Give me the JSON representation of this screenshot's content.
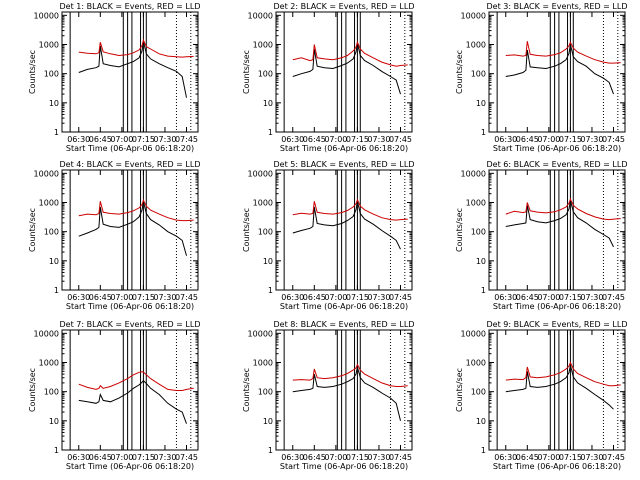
{
  "figure": {
    "ylabel": "Counts/sec",
    "xlabel": "Start Time (06-Apr-06 06:18:20)",
    "x_ticks": [
      "06:30",
      "06:45",
      "07:00",
      "07:15",
      "07:30",
      "07:45"
    ],
    "y_ticks": [
      "1",
      "10",
      "100",
      "1000",
      "10000"
    ],
    "legend_text": "BLACK = Events, RED = LLD",
    "colors": {
      "events": "#000000",
      "lld": "#cc0000",
      "axes": "#000000"
    }
  },
  "chart_data": [
    {
      "type": "line",
      "title": "Det 1",
      "xlim": [
        "06:18:20",
        "07:53"
      ],
      "ylim": [
        1,
        13000
      ],
      "ylog": true,
      "series": [
        {
          "name": "Events",
          "x": [
            "06:30",
            "06:36",
            "06:42",
            "06:44",
            "06:45",
            "06:47",
            "06:52",
            "06:58",
            "07:04",
            "07:08",
            "07:12",
            "07:14",
            "07:15",
            "07:17",
            "07:20",
            "07:26",
            "07:32",
            "07:38",
            "07:42",
            "07:45"
          ],
          "values": [
            110,
            140,
            160,
            180,
            900,
            220,
            190,
            170,
            220,
            260,
            350,
            600,
            1300,
            480,
            320,
            220,
            160,
            120,
            80,
            15
          ]
        },
        {
          "name": "LLD",
          "x": [
            "06:30",
            "06:36",
            "06:42",
            "06:44",
            "06:45",
            "06:47",
            "06:52",
            "06:58",
            "07:04",
            "07:08",
            "07:12",
            "07:14",
            "07:15",
            "07:17",
            "07:20",
            "07:26",
            "07:32",
            "07:38",
            "07:42",
            "07:45",
            "07:50"
          ],
          "values": [
            550,
            500,
            480,
            520,
            1200,
            560,
            480,
            420,
            450,
            520,
            650,
            900,
            1400,
            850,
            700,
            480,
            400,
            380,
            370,
            380,
            390
          ]
        }
      ]
    },
    {
      "type": "line",
      "title": "Det 2",
      "xlim": [
        "06:18:20",
        "07:53"
      ],
      "ylim": [
        1,
        13000
      ],
      "ylog": true,
      "series": [
        {
          "name": "Events",
          "x": [
            "06:30",
            "06:36",
            "06:42",
            "06:44",
            "06:45",
            "06:47",
            "06:52",
            "06:58",
            "07:04",
            "07:08",
            "07:12",
            "07:14",
            "07:15",
            "07:17",
            "07:20",
            "07:26",
            "07:32",
            "07:38",
            "07:42",
            "07:45"
          ],
          "values": [
            80,
            100,
            120,
            140,
            700,
            180,
            160,
            150,
            190,
            230,
            320,
            550,
            1100,
            420,
            280,
            190,
            120,
            80,
            60,
            20
          ]
        },
        {
          "name": "LLD",
          "x": [
            "06:30",
            "06:36",
            "06:42",
            "06:44",
            "06:45",
            "06:47",
            "06:52",
            "06:58",
            "07:04",
            "07:08",
            "07:12",
            "07:14",
            "07:15",
            "07:17",
            "07:20",
            "07:26",
            "07:32",
            "07:38",
            "07:42",
            "07:45",
            "07:50"
          ],
          "values": [
            300,
            350,
            280,
            300,
            1000,
            350,
            320,
            300,
            350,
            420,
            600,
            800,
            1200,
            700,
            500,
            350,
            250,
            200,
            180,
            190,
            200
          ]
        }
      ]
    },
    {
      "type": "line",
      "title": "Det 3",
      "xlim": [
        "06:18:20",
        "07:53"
      ],
      "ylim": [
        1,
        13000
      ],
      "ylog": true,
      "series": [
        {
          "name": "Events",
          "x": [
            "06:30",
            "06:36",
            "06:42",
            "06:44",
            "06:45",
            "06:47",
            "06:52",
            "06:58",
            "07:04",
            "07:08",
            "07:12",
            "07:14",
            "07:15",
            "07:17",
            "07:20",
            "07:26",
            "07:32",
            "07:38",
            "07:42",
            "07:45"
          ],
          "values": [
            80,
            90,
            110,
            130,
            650,
            170,
            160,
            150,
            180,
            220,
            300,
            500,
            1000,
            380,
            260,
            180,
            100,
            70,
            50,
            20
          ]
        },
        {
          "name": "LLD",
          "x": [
            "06:30",
            "06:36",
            "06:42",
            "06:44",
            "06:45",
            "06:47",
            "06:52",
            "06:58",
            "07:04",
            "07:08",
            "07:12",
            "07:14",
            "07:15",
            "07:17",
            "07:20",
            "07:26",
            "07:32",
            "07:38",
            "07:42",
            "07:45",
            "07:50"
          ],
          "values": [
            420,
            440,
            400,
            420,
            1300,
            460,
            420,
            400,
            450,
            520,
            700,
            900,
            1200,
            750,
            550,
            400,
            300,
            250,
            230,
            230,
            240
          ]
        }
      ]
    },
    {
      "type": "line",
      "title": "Det 4",
      "xlim": [
        "06:18:20",
        "07:53"
      ],
      "ylim": [
        1,
        13000
      ],
      "ylog": true,
      "series": [
        {
          "name": "Events",
          "x": [
            "06:30",
            "06:36",
            "06:42",
            "06:44",
            "06:45",
            "06:47",
            "06:52",
            "06:58",
            "07:04",
            "07:08",
            "07:12",
            "07:14",
            "07:15",
            "07:17",
            "07:20",
            "07:26",
            "07:32",
            "07:38",
            "07:42",
            "07:45"
          ],
          "values": [
            70,
            90,
            120,
            140,
            700,
            180,
            150,
            140,
            180,
            220,
            320,
            550,
            1100,
            420,
            260,
            170,
            100,
            70,
            50,
            15
          ]
        },
        {
          "name": "LLD",
          "x": [
            "06:30",
            "06:36",
            "06:42",
            "06:44",
            "06:45",
            "06:47",
            "06:52",
            "06:58",
            "07:04",
            "07:08",
            "07:12",
            "07:14",
            "07:15",
            "07:17",
            "07:20",
            "07:26",
            "07:32",
            "07:38",
            "07:42",
            "07:45",
            "07:50"
          ],
          "values": [
            350,
            400,
            380,
            420,
            1100,
            460,
            420,
            400,
            450,
            520,
            650,
            850,
            1200,
            750,
            550,
            400,
            300,
            250,
            240,
            240,
            250
          ]
        }
      ]
    },
    {
      "type": "line",
      "title": "Det 5",
      "xlim": [
        "06:18:20",
        "07:53"
      ],
      "ylim": [
        1,
        13000
      ],
      "ylog": true,
      "series": [
        {
          "name": "Events",
          "x": [
            "06:30",
            "06:36",
            "06:42",
            "06:44",
            "06:45",
            "06:47",
            "06:52",
            "06:58",
            "07:04",
            "07:08",
            "07:12",
            "07:14",
            "07:15",
            "07:17",
            "07:20",
            "07:26",
            "07:32",
            "07:38",
            "07:42",
            "07:45"
          ],
          "values": [
            90,
            110,
            130,
            150,
            700,
            190,
            170,
            160,
            190,
            240,
            330,
            560,
            1100,
            420,
            270,
            180,
            110,
            70,
            50,
            25
          ]
        },
        {
          "name": "LLD",
          "x": [
            "06:30",
            "06:36",
            "06:42",
            "06:44",
            "06:45",
            "06:47",
            "06:52",
            "06:58",
            "07:04",
            "07:08",
            "07:12",
            "07:14",
            "07:15",
            "07:17",
            "07:20",
            "07:26",
            "07:32",
            "07:38",
            "07:42",
            "07:45",
            "07:50"
          ],
          "values": [
            380,
            430,
            400,
            420,
            1100,
            460,
            420,
            400,
            450,
            530,
            700,
            900,
            1250,
            750,
            560,
            400,
            300,
            260,
            250,
            260,
            270
          ]
        }
      ]
    },
    {
      "type": "line",
      "title": "Det 6",
      "xlim": [
        "06:18:20",
        "07:53"
      ],
      "ylim": [
        1,
        13000
      ],
      "ylog": true,
      "series": [
        {
          "name": "Events",
          "x": [
            "06:30",
            "06:36",
            "06:42",
            "06:44",
            "06:45",
            "06:47",
            "06:52",
            "06:58",
            "07:04",
            "07:08",
            "07:12",
            "07:14",
            "07:15",
            "07:17",
            "07:20",
            "07:26",
            "07:32",
            "07:38",
            "07:42",
            "07:45"
          ],
          "values": [
            150,
            170,
            190,
            200,
            800,
            260,
            220,
            200,
            240,
            280,
            380,
            600,
            1200,
            480,
            300,
            200,
            120,
            80,
            60,
            30
          ]
        },
        {
          "name": "LLD",
          "x": [
            "06:30",
            "06:36",
            "06:42",
            "06:44",
            "06:45",
            "06:47",
            "06:52",
            "06:58",
            "07:04",
            "07:08",
            "07:12",
            "07:14",
            "07:15",
            "07:17",
            "07:20",
            "07:26",
            "07:32",
            "07:38",
            "07:42",
            "07:45",
            "07:50"
          ],
          "values": [
            400,
            500,
            450,
            480,
            1000,
            520,
            470,
            440,
            480,
            560,
            700,
            950,
            1300,
            800,
            600,
            420,
            320,
            270,
            260,
            270,
            280
          ]
        }
      ]
    },
    {
      "type": "line",
      "title": "Det 7",
      "xlim": [
        "06:18:20",
        "07:53"
      ],
      "ylim": [
        1,
        13000
      ],
      "ylog": true,
      "series": [
        {
          "name": "Events",
          "x": [
            "06:30",
            "06:36",
            "06:42",
            "06:44",
            "06:45",
            "06:47",
            "06:52",
            "06:58",
            "07:04",
            "07:08",
            "07:12",
            "07:14",
            "07:15",
            "07:17",
            "07:20",
            "07:26",
            "07:32",
            "07:38",
            "07:42",
            "07:45"
          ],
          "values": [
            50,
            45,
            40,
            45,
            80,
            50,
            45,
            60,
            90,
            130,
            170,
            210,
            240,
            190,
            130,
            80,
            40,
            25,
            20,
            8
          ]
        },
        {
          "name": "LLD",
          "x": [
            "06:30",
            "06:36",
            "06:42",
            "06:44",
            "06:45",
            "06:47",
            "06:52",
            "06:58",
            "07:04",
            "07:08",
            "07:12",
            "07:14",
            "07:15",
            "07:17",
            "07:20",
            "07:26",
            "07:32",
            "07:38",
            "07:42",
            "07:45",
            "07:50"
          ],
          "values": [
            180,
            140,
            120,
            130,
            160,
            130,
            150,
            200,
            280,
            380,
            460,
            480,
            470,
            380,
            280,
            180,
            120,
            110,
            110,
            120,
            130
          ]
        }
      ]
    },
    {
      "type": "line",
      "title": "Det 8",
      "xlim": [
        "06:18:20",
        "07:53"
      ],
      "ylim": [
        1,
        13000
      ],
      "ylog": true,
      "series": [
        {
          "name": "Events",
          "x": [
            "06:30",
            "06:36",
            "06:42",
            "06:44",
            "06:45",
            "06:47",
            "06:52",
            "06:58",
            "07:04",
            "07:08",
            "07:12",
            "07:14",
            "07:15",
            "07:17",
            "07:20",
            "07:26",
            "07:32",
            "07:38",
            "07:42",
            "07:45"
          ],
          "values": [
            100,
            110,
            120,
            130,
            400,
            150,
            140,
            150,
            180,
            220,
            280,
            400,
            700,
            300,
            200,
            140,
            90,
            60,
            40,
            10
          ]
        },
        {
          "name": "LLD",
          "x": [
            "06:30",
            "06:36",
            "06:42",
            "06:44",
            "06:45",
            "06:47",
            "06:52",
            "06:58",
            "07:04",
            "07:08",
            "07:12",
            "07:14",
            "07:15",
            "07:17",
            "07:20",
            "07:26",
            "07:32",
            "07:38",
            "07:42",
            "07:45",
            "07:50"
          ],
          "values": [
            250,
            260,
            250,
            280,
            600,
            300,
            280,
            300,
            350,
            420,
            550,
            650,
            850,
            550,
            400,
            280,
            200,
            160,
            150,
            150,
            160
          ]
        }
      ]
    },
    {
      "type": "line",
      "title": "Det 9",
      "xlim": [
        "06:18:20",
        "07:53"
      ],
      "ylim": [
        1,
        13000
      ],
      "ylog": true,
      "series": [
        {
          "name": "Events",
          "x": [
            "06:30",
            "06:36",
            "06:42",
            "06:44",
            "06:45",
            "06:47",
            "06:52",
            "06:58",
            "07:04",
            "07:08",
            "07:12",
            "07:14",
            "07:15",
            "07:17",
            "07:20",
            "07:26",
            "07:32",
            "07:38",
            "07:42",
            "07:45"
          ],
          "values": [
            100,
            110,
            120,
            130,
            500,
            150,
            140,
            150,
            180,
            220,
            300,
            450,
            800,
            320,
            200,
            130,
            80,
            50,
            35,
            25
          ]
        },
        {
          "name": "LLD",
          "x": [
            "06:30",
            "06:36",
            "06:42",
            "06:44",
            "06:45",
            "06:47",
            "06:52",
            "06:58",
            "07:04",
            "07:08",
            "07:12",
            "07:14",
            "07:15",
            "07:17",
            "07:20",
            "07:26",
            "07:32",
            "07:38",
            "07:42",
            "07:45",
            "07:50"
          ],
          "values": [
            250,
            270,
            260,
            300,
            700,
            320,
            300,
            320,
            380,
            450,
            600,
            750,
            1000,
            600,
            420,
            300,
            220,
            180,
            160,
            160,
            170
          ]
        }
      ]
    }
  ]
}
